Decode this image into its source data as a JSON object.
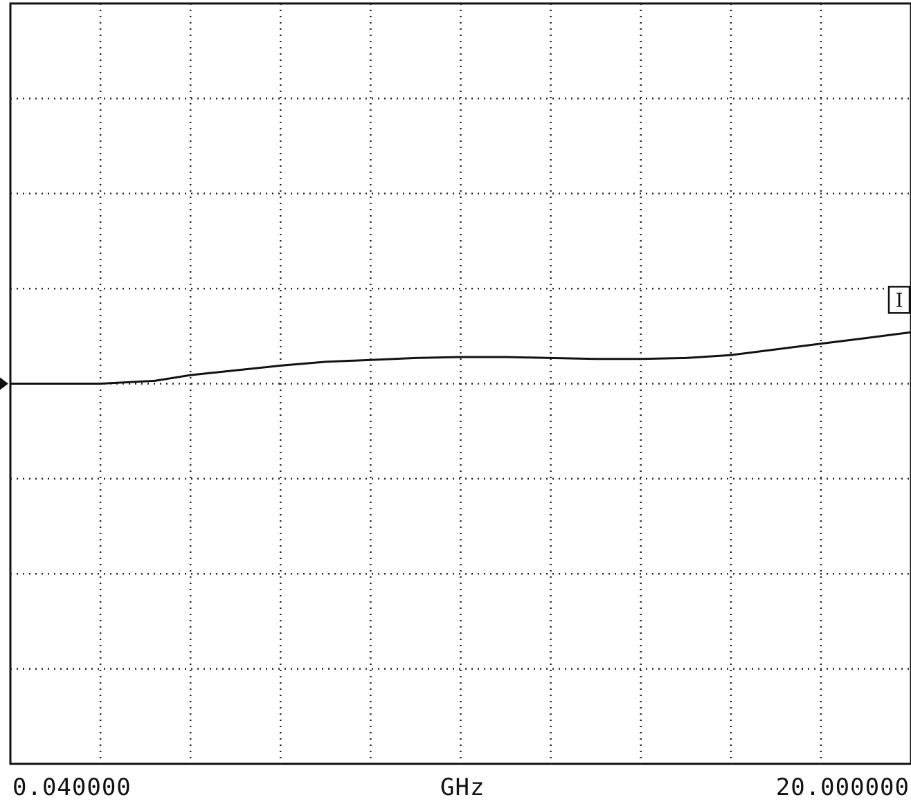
{
  "chart_data": {
    "type": "line",
    "title": "",
    "xlabel": "GHz",
    "ylabel": "",
    "x_start_label": "0.040000",
    "x_end_label": "20.000000",
    "xlim": [
      0.04,
      20.0
    ],
    "ylim": [
      0,
      8
    ],
    "x_divisions": 10,
    "y_divisions": 8,
    "grid": true,
    "reference_level": 4,
    "trace_label": "I",
    "series": [
      {
        "values_x": [
          0.04,
          1.24,
          2.04,
          3.24,
          4.03,
          5.03,
          6.03,
          7.03,
          8.02,
          9.02,
          10.02,
          11.02,
          12.01,
          13.01,
          14.01,
          15.01,
          16.0,
          17.0,
          18.0,
          19.0,
          20.0
        ],
        "values_y": [
          4.0,
          4.0,
          4.0,
          4.03,
          4.09,
          4.14,
          4.19,
          4.23,
          4.25,
          4.27,
          4.28,
          4.28,
          4.27,
          4.26,
          4.26,
          4.27,
          4.3,
          4.36,
          4.42,
          4.48,
          4.54
        ]
      }
    ],
    "colors": {
      "trace": "#111111",
      "grid": "#222222",
      "frame": "#111111",
      "background": "#ffffff"
    }
  }
}
